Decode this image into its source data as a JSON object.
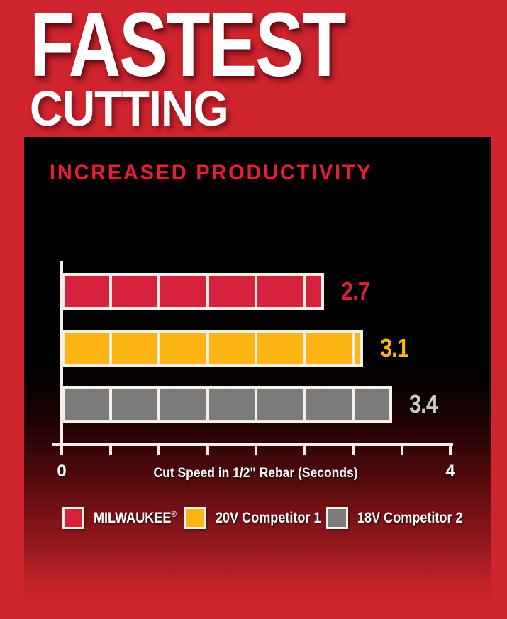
{
  "header": {
    "line1": "FASTEST",
    "line2": "CUTTING"
  },
  "panel": {
    "heading": "INCREASED PRODUCTIVITY"
  },
  "chart_data": {
    "type": "bar",
    "orientation": "horizontal",
    "title": "INCREASED PRODUCTIVITY",
    "xlabel": "Cut Speed in 1/2\" Rebar (Seconds)",
    "xlim": [
      0,
      4
    ],
    "tick_interval": 0.5,
    "bar_segment_interval": 0.5,
    "xticks_labeled": [
      "0",
      "4"
    ],
    "grid": false,
    "legend_position": "bottom",
    "series": [
      {
        "name": "MILWAUKEE®",
        "name_base": "MILWAUKEE",
        "reg": "®",
        "value": 2.7,
        "label": "2.7",
        "color": "#d6213c",
        "label_color": "#d6213c"
      },
      {
        "name": "20V Competitor 1",
        "name_base": "20V Competitor 1",
        "reg": "",
        "value": 3.1,
        "label": "3.1",
        "color": "#fcb515",
        "label_color": "#fcb515"
      },
      {
        "name": "18V Competitor 2",
        "name_base": "18V Competitor 2",
        "reg": "",
        "value": 3.4,
        "label": "3.4",
        "color": "#7b7b7b",
        "label_color": "#c9c9c9"
      }
    ]
  },
  "colors": {
    "page_red": "#d0242e",
    "heading_red": "#de2338",
    "axis_white": "#f3efe7"
  }
}
